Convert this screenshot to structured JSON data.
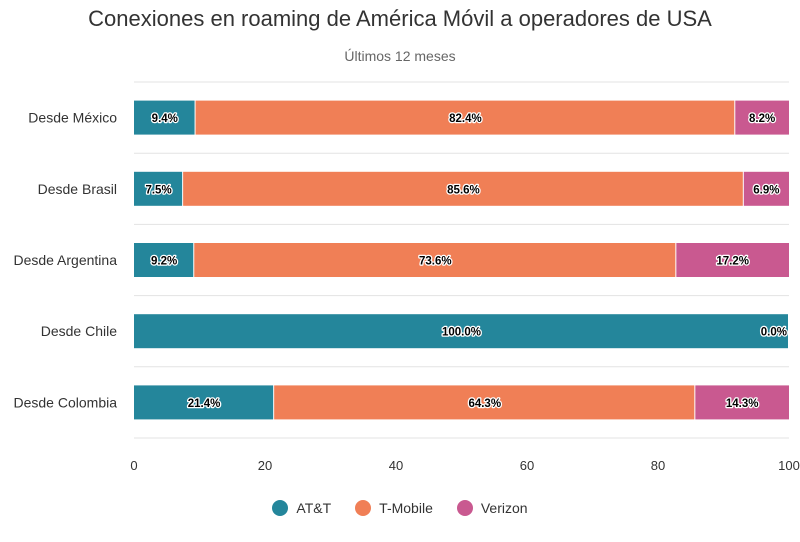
{
  "chart_data": {
    "type": "bar",
    "orientation": "horizontal",
    "stacked": true,
    "title": "Conexiones en roaming de América Móvil a operadores de USA",
    "subtitle": "Últimos 12 meses",
    "categories": [
      "Desde México",
      "Desde Brasil",
      "Desde Argentina",
      "Desde Chile",
      "Desde Colombia"
    ],
    "series": [
      {
        "name": "AT&T",
        "color": "#24869b",
        "values": [
          9.4,
          7.5,
          9.2,
          100.0,
          21.4
        ]
      },
      {
        "name": "T-Mobile",
        "color": "#f07f56",
        "values": [
          82.4,
          85.6,
          73.6,
          0.0,
          64.3
        ]
      },
      {
        "name": "Verizon",
        "color": "#c95990",
        "values": [
          8.2,
          6.9,
          17.2,
          0.0,
          14.3
        ]
      }
    ],
    "data_labels": [
      [
        "9.4%",
        "82.4%",
        "8.2%"
      ],
      [
        "7.5%",
        "85.6%",
        "6.9%"
      ],
      [
        "9.2%",
        "73.6%",
        "17.2%"
      ],
      [
        "100.0%",
        null,
        "0.0%"
      ],
      [
        "21.4%",
        "64.3%",
        "14.3%"
      ]
    ],
    "xlim": [
      0,
      100
    ],
    "xticks": [
      "0",
      "20",
      "40",
      "60",
      "80",
      "100"
    ],
    "legend_position": "bottom",
    "grid": true
  }
}
